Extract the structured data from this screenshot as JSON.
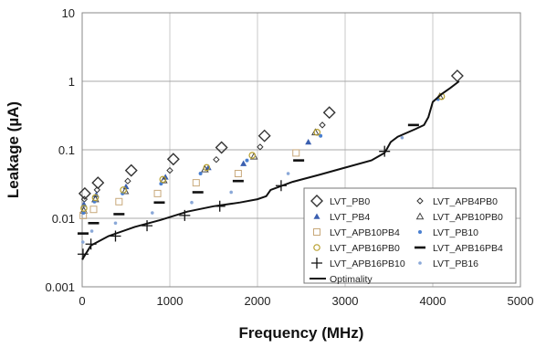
{
  "chart_data": {
    "type": "scatter",
    "xlabel": "Frequency (MHz)",
    "ylabel": "Leakage (µA)",
    "xlim": [
      0,
      5000
    ],
    "ylim": [
      0.001,
      10
    ],
    "yscale": "log",
    "x_ticks": [
      0,
      1000,
      2000,
      3000,
      4000,
      5000
    ],
    "x_tick_labels": [
      "0",
      "1000",
      "2000",
      "3000",
      "4000",
      "5000"
    ],
    "y_ticks": [
      0.001,
      0.01,
      0.1,
      1,
      10
    ],
    "y_tick_labels": [
      "0.001",
      "0.01",
      "0.1",
      "1",
      "10"
    ],
    "grid": "horizontal",
    "legend_position": "bottom-right",
    "series": [
      {
        "name": "LVT_PB0",
        "marker": "diamond-open",
        "color": "#333333",
        "x": [
          30,
          180,
          560,
          1040,
          1590,
          2080,
          2820,
          4280
        ],
        "y": [
          0.023,
          0.033,
          0.05,
          0.073,
          0.108,
          0.16,
          0.35,
          1.2
        ]
      },
      {
        "name": "LVT_APB4PB0",
        "marker": "diamond-small-open",
        "color": "#333333",
        "x": [
          25,
          170,
          520,
          1000,
          1530,
          2030,
          2740
        ],
        "y": [
          0.019,
          0.026,
          0.035,
          0.05,
          0.072,
          0.11,
          0.23
        ]
      },
      {
        "name": "LVT_PB4",
        "marker": "triangle",
        "color": "#3a5fb0",
        "x": [
          20,
          160,
          500,
          950,
          1440,
          1840,
          2580
        ],
        "y": [
          0.016,
          0.022,
          0.029,
          0.04,
          0.055,
          0.063,
          0.13
        ]
      },
      {
        "name": "LVT_APB10PB0",
        "marker": "triangle-open",
        "color": "#444444",
        "x": [
          18,
          150,
          490,
          930,
          1400,
          1960,
          2660,
          4080
        ],
        "y": [
          0.013,
          0.019,
          0.025,
          0.036,
          0.052,
          0.08,
          0.18,
          0.6
        ]
      },
      {
        "name": "LVT_APB10PB4",
        "marker": "square-open",
        "color": "#c8a87a",
        "x": [
          12,
          130,
          420,
          860,
          1300,
          1780,
          2440
        ],
        "y": [
          0.011,
          0.0135,
          0.0175,
          0.023,
          0.033,
          0.045,
          0.09
        ]
      },
      {
        "name": "LVT_PB10",
        "marker": "dot",
        "color": "#4a7fd0",
        "x": [
          15,
          140,
          460,
          900,
          1350,
          1880,
          2720,
          4060
        ],
        "y": [
          0.012,
          0.0175,
          0.023,
          0.032,
          0.045,
          0.07,
          0.16,
          0.55
        ]
      },
      {
        "name": "LVT_APB16PB0",
        "marker": "circle-open",
        "color": "#b8a030",
        "x": [
          20,
          150,
          470,
          920,
          1420,
          1940,
          2680,
          4100
        ],
        "y": [
          0.014,
          0.02,
          0.026,
          0.037,
          0.055,
          0.083,
          0.18,
          0.6
        ]
      },
      {
        "name": "LVT_APB16PB4",
        "marker": "dash",
        "color": "#111111",
        "x": [
          10,
          130,
          420,
          880,
          1320,
          1780,
          2470,
          3780
        ],
        "y": [
          0.006,
          0.0085,
          0.0115,
          0.017,
          0.024,
          0.035,
          0.07,
          0.23
        ]
      },
      {
        "name": "LVT_APB16PB10",
        "marker": "plus",
        "color": "#111111",
        "x": [
          10,
          100,
          380,
          740,
          1170,
          1570,
          2270,
          3450
        ],
        "y": [
          0.003,
          0.0042,
          0.0055,
          0.0078,
          0.011,
          0.015,
          0.03,
          0.095
        ]
      },
      {
        "name": "LVT_PB16",
        "marker": "star-small",
        "color": "#8aa8d8",
        "x": [
          8,
          110,
          380,
          800,
          1250,
          1700,
          2350,
          3650
        ],
        "y": [
          0.0045,
          0.0065,
          0.0085,
          0.012,
          0.017,
          0.024,
          0.045,
          0.15
        ]
      },
      {
        "name": "Optimality",
        "marker": "line",
        "color": "#111111",
        "x": [
          0,
          100,
          300,
          600,
          900,
          1200,
          1500,
          1800,
          2000,
          2100,
          2150,
          2400,
          2700,
          3000,
          3300,
          3450,
          3480,
          3520,
          3600,
          3800,
          3900,
          3950,
          4000,
          4100,
          4200,
          4300
        ],
        "y": [
          0.0025,
          0.004,
          0.0055,
          0.0075,
          0.0095,
          0.0125,
          0.015,
          0.017,
          0.019,
          0.021,
          0.026,
          0.034,
          0.043,
          0.055,
          0.07,
          0.09,
          0.105,
          0.13,
          0.155,
          0.2,
          0.23,
          0.3,
          0.5,
          0.65,
          0.8,
          1.0
        ]
      }
    ]
  }
}
